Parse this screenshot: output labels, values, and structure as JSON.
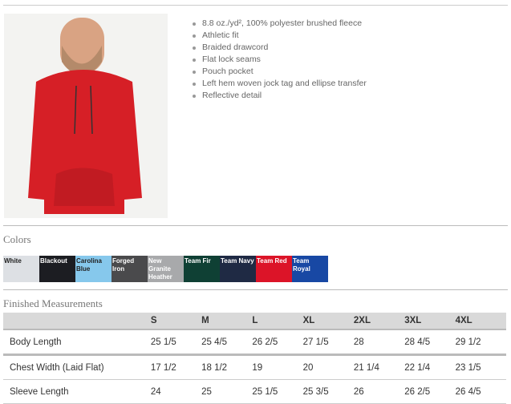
{
  "features": [
    "8.8 oz./yd², 100% polyester brushed fleece",
    "Athletic fit",
    "Braided drawcord",
    "Flat lock seams",
    "Pouch pocket",
    "Left hem woven jock tag and ellipse transfer",
    "Reflective detail"
  ],
  "colors_title": "Colors",
  "colors": [
    {
      "name": "White",
      "hex": "#dde0e4",
      "text": "#222"
    },
    {
      "name": "Blackout",
      "hex": "#1c1d22",
      "text": "#fff"
    },
    {
      "name": "Carolina Blue",
      "hex": "#86c8ec",
      "text": "#222"
    },
    {
      "name": "Forged Iron",
      "hex": "#4a4a4c",
      "text": "#fff"
    },
    {
      "name": "New Granite Heather",
      "hex": "#a8a9ab",
      "text": "#fff"
    },
    {
      "name": "Team Fir",
      "hex": "#0f4034",
      "text": "#fff"
    },
    {
      "name": "Team Navy",
      "hex": "#1f2a44",
      "text": "#fff"
    },
    {
      "name": "Team Red",
      "hex": "#dc1428",
      "text": "#fff"
    },
    {
      "name": "Team Royal",
      "hex": "#1848a4",
      "text": "#fff"
    }
  ],
  "measurements_title": "Finished Measurements",
  "sizes": [
    "S",
    "M",
    "L",
    "XL",
    "2XL",
    "3XL",
    "4XL"
  ],
  "rows": [
    {
      "label": "Body Length",
      "values": [
        "25 1/5",
        "25 4/5",
        "26 2/5",
        "27 1/5",
        "28",
        "28 4/5",
        "29 1/2"
      ]
    },
    {
      "label": "Chest Width (Laid Flat)",
      "values": [
        "17 1/2",
        "18 1/2",
        "19",
        "20",
        "21 1/4",
        "22 1/4",
        "23 1/5"
      ]
    },
    {
      "label": "Sleeve Length",
      "values": [
        "24",
        "25",
        "25 1/5",
        "25 3/5",
        "26",
        "26 2/5",
        "26 4/5"
      ]
    }
  ]
}
